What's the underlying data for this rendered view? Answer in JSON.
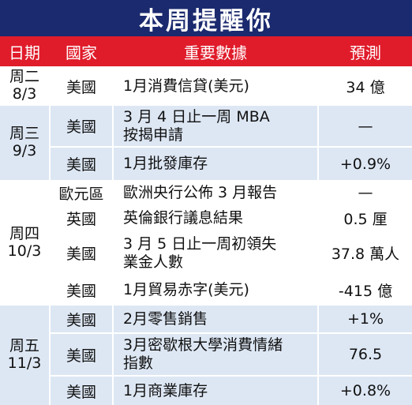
{
  "title": "本周提醒你",
  "headers": {
    "day": "日期",
    "country": "國家",
    "data": "重要數據",
    "forecast": "預測"
  },
  "days": [
    {
      "label": "周二\n8/3"
    },
    {
      "label": "周三\n9/3"
    },
    {
      "label": "周四\n10/3"
    },
    {
      "label": "周五\n11/3"
    }
  ],
  "rows": [
    {
      "country": "美國",
      "data": "1月消費信貸(美元)",
      "forecast": "34 億"
    },
    {
      "country": "美國",
      "data": "3 月 4 日止一周 MBA\n按揭申請",
      "forecast": "—"
    },
    {
      "country": "美國",
      "data": "1月批發庫存",
      "forecast": "+0.9%"
    },
    {
      "country": "歐元區",
      "data": "歐洲央行公佈 3 月報告",
      "forecast": "—"
    },
    {
      "country": "英國",
      "data": "英倫銀行議息結果",
      "forecast": "0.5 厘"
    },
    {
      "country": "美國",
      "data": "3 月 5 日止一周初領失\n業金人數",
      "forecast": "37.8 萬人"
    },
    {
      "country": "美國",
      "data": "1月貿易赤字(美元)",
      "forecast": "-415 億"
    },
    {
      "country": "美國",
      "data": "2月零售銷售",
      "forecast": "+1%"
    },
    {
      "country": "美國",
      "data": "3月密歇根大學消費情緒\n指數",
      "forecast": "76.5"
    },
    {
      "country": "美國",
      "data": "1月商業庫存",
      "forecast": "+0.8%"
    }
  ],
  "colors": {
    "title_bg": "#1b2a6e",
    "header_bg": "#e01c2b",
    "band_a": "#ffffff",
    "band_b": "#dde7f4"
  }
}
